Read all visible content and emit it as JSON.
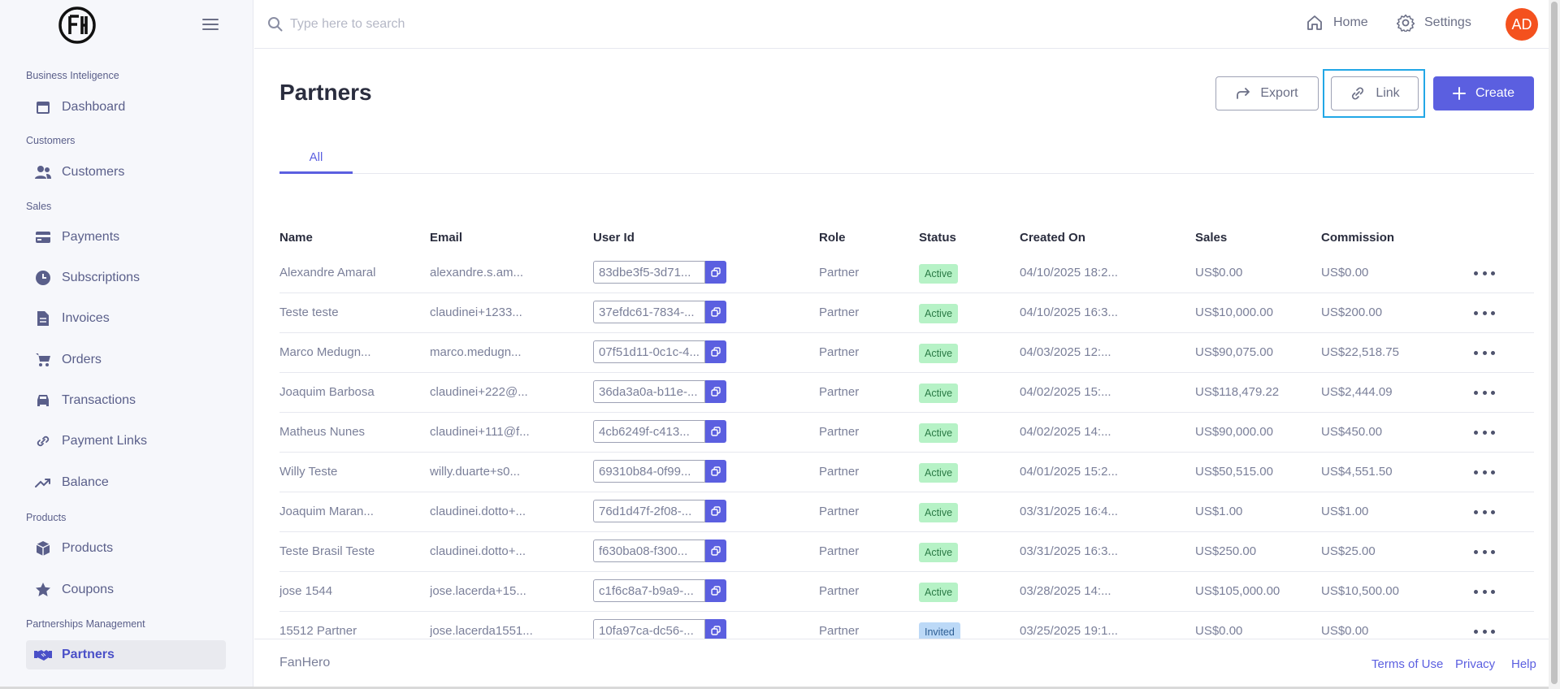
{
  "sidebar": {
    "sections": [
      {
        "label": "Business Inteligence",
        "items": [
          {
            "label": "Dashboard",
            "icon": "calendar-icon"
          }
        ]
      },
      {
        "label": "Customers",
        "items": [
          {
            "label": "Customers",
            "icon": "users-icon"
          }
        ]
      },
      {
        "label": "Sales",
        "items": [
          {
            "label": "Payments",
            "icon": "credit-card-icon"
          },
          {
            "label": "Subscriptions",
            "icon": "clock-icon"
          },
          {
            "label": "Invoices",
            "icon": "document-icon"
          },
          {
            "label": "Orders",
            "icon": "cart-icon"
          },
          {
            "label": "Transactions",
            "icon": "car-icon"
          },
          {
            "label": "Payment Links",
            "icon": "link-icon"
          },
          {
            "label": "Balance",
            "icon": "trending-up-icon"
          }
        ]
      },
      {
        "label": "Products",
        "items": [
          {
            "label": "Products",
            "icon": "cube-icon"
          },
          {
            "label": "Coupons",
            "icon": "star-icon"
          }
        ]
      },
      {
        "label": "Partnerships Management",
        "items": [
          {
            "label": "Partners",
            "icon": "handshake-icon",
            "active": true
          }
        ]
      }
    ]
  },
  "header": {
    "search_placeholder": "Type here to search",
    "home_label": "Home",
    "settings_label": "Settings",
    "avatar_initials": "AD",
    "avatar_color": "#f4511e"
  },
  "page": {
    "title": "Partners",
    "export_label": "Export",
    "link_label": "Link",
    "create_label": "Create",
    "tabs": [
      {
        "label": "All",
        "active": true
      }
    ]
  },
  "table": {
    "columns": [
      "Name",
      "Email",
      "User Id",
      "Role",
      "Status",
      "Created On",
      "Sales",
      "Commission"
    ],
    "rows": [
      {
        "name": "Alexandre Amaral",
        "email": "alexandre.s.am...",
        "user_id": "83dbe3f5-3d71...",
        "role": "Partner",
        "status": "Active",
        "created": "04/10/2025 18:2...",
        "sales": "US$0.00",
        "commission": "US$0.00"
      },
      {
        "name": "Teste teste",
        "email": "claudinei+1233...",
        "user_id": "37efdc61-7834-...",
        "role": "Partner",
        "status": "Active",
        "created": "04/10/2025 16:3...",
        "sales": "US$10,000.00",
        "commission": "US$200.00"
      },
      {
        "name": "Marco Medugn...",
        "email": "marco.medugn...",
        "user_id": "07f51d11-0c1c-4...",
        "role": "Partner",
        "status": "Active",
        "created": "04/03/2025 12:...",
        "sales": "US$90,075.00",
        "commission": "US$22,518.75"
      },
      {
        "name": "Joaquim Barbosa",
        "email": "claudinei+222@...",
        "user_id": "36da3a0a-b11e-...",
        "role": "Partner",
        "status": "Active",
        "created": "04/02/2025 15:...",
        "sales": "US$118,479.22",
        "commission": "US$2,444.09"
      },
      {
        "name": "Matheus Nunes",
        "email": "claudinei+111@f...",
        "user_id": "4cb6249f-c413...",
        "role": "Partner",
        "status": "Active",
        "created": "04/02/2025 14:...",
        "sales": "US$90,000.00",
        "commission": "US$450.00"
      },
      {
        "name": "Willy Teste",
        "email": "willy.duarte+s0...",
        "user_id": "69310b84-0f99...",
        "role": "Partner",
        "status": "Active",
        "created": "04/01/2025 15:2...",
        "sales": "US$50,515.00",
        "commission": "US$4,551.50"
      },
      {
        "name": "Joaquim Maran...",
        "email": "claudinei.dotto+...",
        "user_id": "76d1d47f-2f08-...",
        "role": "Partner",
        "status": "Active",
        "created": "03/31/2025 16:4...",
        "sales": "US$1.00",
        "commission": "US$1.00"
      },
      {
        "name": "Teste Brasil Teste",
        "email": "claudinei.dotto+...",
        "user_id": "f630ba08-f300...",
        "role": "Partner",
        "status": "Active",
        "created": "03/31/2025 16:3...",
        "sales": "US$250.00",
        "commission": "US$25.00"
      },
      {
        "name": "jose 1544",
        "email": "jose.lacerda+15...",
        "user_id": "c1f6c8a7-b9a9-...",
        "role": "Partner",
        "status": "Active",
        "created": "03/28/2025 14:...",
        "sales": "US$105,000.00",
        "commission": "US$10,500.00"
      },
      {
        "name": "15512 Partner",
        "email": "jose.lacerda1551...",
        "user_id": "10fa97ca-dc56-...",
        "role": "Partner",
        "status": "Invited",
        "created": "03/25/2025 19:1...",
        "sales": "US$0.00",
        "commission": "US$0.00"
      }
    ]
  },
  "footer": {
    "brand": "FanHero",
    "terms_label": "Terms of Use",
    "privacy_label": "Privacy",
    "help_label": "Help"
  },
  "colors": {
    "accent": "#5b5fe0",
    "active_badge": "#b6f2c6",
    "invited_badge": "#bcd9f7",
    "focus_ring": "#22a7e6"
  }
}
